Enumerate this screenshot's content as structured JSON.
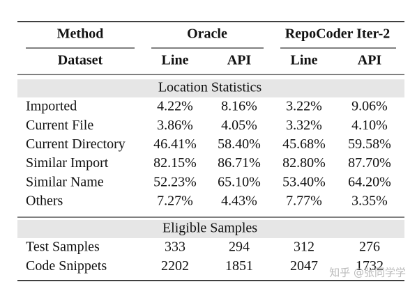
{
  "table": {
    "header": {
      "method": "Method",
      "groups": [
        "Oracle",
        "RepoCoder Iter-2"
      ],
      "dataset": "Dataset",
      "columns": [
        "Line",
        "API",
        "Line",
        "API"
      ]
    },
    "sections": [
      {
        "title": "Location Statistics",
        "rows": [
          [
            "Imported",
            "4.22%",
            "8.16%",
            "3.22%",
            "9.06%"
          ],
          [
            "Current File",
            "3.86%",
            "4.05%",
            "3.32%",
            "4.10%"
          ],
          [
            "Current Directory",
            "46.41%",
            "58.40%",
            "45.68%",
            "59.58%"
          ],
          [
            "Similar Import",
            "82.15%",
            "86.71%",
            "82.80%",
            "87.70%"
          ],
          [
            "Similar Name",
            "52.23%",
            "65.10%",
            "53.40%",
            "64.20%"
          ],
          [
            "Others",
            "7.27%",
            "4.43%",
            "7.77%",
            "3.35%"
          ]
        ]
      },
      {
        "title": "Eligible Samples",
        "rows": [
          [
            "Test Samples",
            "333",
            "294",
            "312",
            "276"
          ],
          [
            "Code Snippets",
            "2202",
            "1851",
            "2047",
            "1732"
          ]
        ]
      }
    ]
  },
  "watermark": "知乎 @张同学学"
}
